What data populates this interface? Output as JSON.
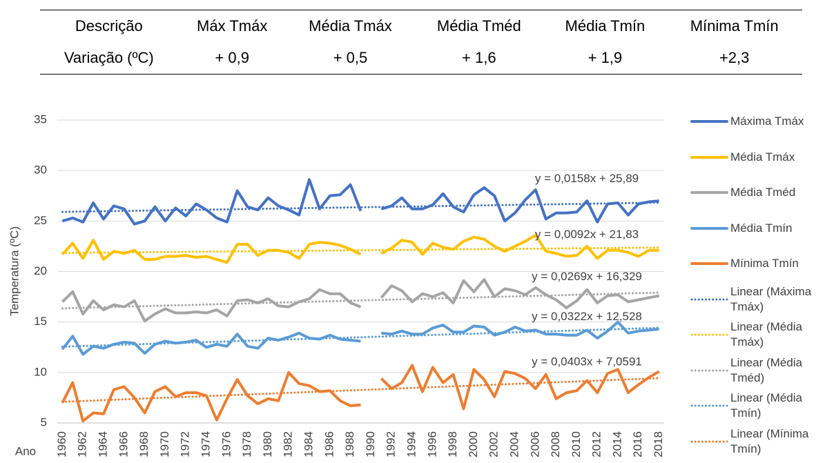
{
  "table": {
    "header": [
      "Descrição",
      "Máx Tmáx",
      "Média Tmáx",
      "Média Tméd",
      "Média Tmín",
      "Mínima Tmín"
    ],
    "rows": [
      [
        "Variação (ºC)",
        "+ 0,9",
        "+ 0,5",
        "+ 1,6",
        "+ 1,9",
        "+2,3"
      ]
    ]
  },
  "chart_data": {
    "type": "line",
    "y_label": "Temperatura (ºC)",
    "x_label": "Ano",
    "x": [
      1960,
      1961,
      1962,
      1963,
      1964,
      1965,
      1966,
      1967,
      1968,
      1969,
      1970,
      1971,
      1972,
      1973,
      1974,
      1975,
      1976,
      1977,
      1978,
      1979,
      1980,
      1981,
      1982,
      1983,
      1984,
      1985,
      1986,
      1987,
      1988,
      1989,
      1990,
      1991,
      1992,
      1993,
      1994,
      1995,
      1996,
      1997,
      1998,
      1999,
      2000,
      2001,
      2002,
      2003,
      2004,
      2005,
      2006,
      2007,
      2008,
      2009,
      2010,
      2011,
      2012,
      2013,
      2014,
      2015,
      2016,
      2017,
      2018
    ],
    "xlim": [
      1959.5,
      2018.5
    ],
    "xticks": [
      1960,
      1962,
      1964,
      1966,
      1968,
      1970,
      1972,
      1974,
      1976,
      1978,
      1980,
      1982,
      1984,
      1986,
      1988,
      1990,
      1992,
      1994,
      1996,
      1998,
      2000,
      2002,
      2004,
      2006,
      2008,
      2010,
      2012,
      2014,
      2016,
      2018
    ],
    "ylim": [
      5,
      35
    ],
    "yticks": [
      5,
      10,
      15,
      20,
      25,
      30,
      35
    ],
    "grid": true,
    "legend": "right",
    "series": [
      {
        "name": "Máxima Tmáx",
        "color": "#4472c4",
        "values": [
          25.0,
          25.3,
          24.9,
          26.8,
          25.2,
          26.5,
          26.2,
          24.7,
          25.0,
          26.4,
          25.0,
          26.3,
          25.5,
          26.7,
          26.1,
          25.3,
          24.9,
          28.0,
          26.4,
          26.1,
          27.3,
          26.5,
          26.1,
          25.6,
          29.1,
          26.2,
          27.5,
          27.6,
          28.6,
          26.0,
          null,
          26.2,
          26.5,
          27.3,
          26.2,
          26.2,
          26.6,
          27.7,
          26.4,
          25.9,
          27.6,
          28.3,
          27.5,
          25.0,
          25.8,
          27.1,
          28.1,
          25.2,
          25.8,
          25.8,
          25.9,
          27.0,
          24.9,
          26.7,
          26.8,
          25.6,
          26.7,
          26.9,
          27.0
        ],
        "trendline": {
          "name": "Linear (Máxima Tmáx)",
          "equation": "y = 0,0158x + 25,89",
          "slope": 0.0158,
          "intercept": 25.89
        }
      },
      {
        "name": "Média Tmáx",
        "color": "#ffc000",
        "values": [
          21.7,
          22.8,
          21.3,
          23.1,
          21.2,
          22.0,
          21.8,
          22.1,
          21.2,
          21.2,
          21.5,
          21.5,
          21.6,
          21.4,
          21.5,
          21.2,
          20.9,
          22.7,
          22.7,
          21.6,
          22.1,
          22.1,
          21.9,
          21.3,
          22.7,
          22.9,
          22.8,
          22.6,
          22.2,
          21.7,
          null,
          21.8,
          22.3,
          23.1,
          22.9,
          21.7,
          22.8,
          22.4,
          22.2,
          23.0,
          23.4,
          23.2,
          22.5,
          22.0,
          22.5,
          23.0,
          23.6,
          22.0,
          21.8,
          21.5,
          21.6,
          22.5,
          21.3,
          22.1,
          22.1,
          21.9,
          21.5,
          22.1,
          22.1
        ],
        "trendline": {
          "name": "Linear (Média Tmáx)",
          "equation": "y = 0,0092x + 21,83",
          "slope": 0.0092,
          "intercept": 21.83
        }
      },
      {
        "name": "Média Tméd",
        "color": "#a5a5a5",
        "values": [
          17.0,
          18.0,
          15.8,
          17.1,
          16.2,
          16.7,
          16.5,
          17.1,
          15.1,
          15.8,
          16.3,
          15.9,
          15.9,
          16.0,
          15.9,
          16.2,
          15.6,
          17.1,
          17.2,
          16.9,
          17.3,
          16.6,
          16.5,
          17.0,
          17.3,
          18.2,
          17.8,
          17.8,
          16.9,
          16.5,
          null,
          17.4,
          18.6,
          18.1,
          17.0,
          17.8,
          17.5,
          17.9,
          16.9,
          19.1,
          18.0,
          19.2,
          17.5,
          18.3,
          18.1,
          17.7,
          18.4,
          17.7,
          17.2,
          16.4,
          17.1,
          18.2,
          16.9,
          17.6,
          17.7,
          17.0,
          17.2,
          17.4,
          17.6
        ],
        "trendline": {
          "name": "Linear (Média Tméd)",
          "equation": "y = 0,0269x + 16,329",
          "slope": 0.0269,
          "intercept": 16.329
        }
      },
      {
        "name": "Média Tmín",
        "color": "#5b9bd5",
        "values": [
          12.3,
          13.6,
          11.8,
          12.6,
          12.4,
          12.8,
          13.0,
          12.9,
          11.9,
          12.8,
          13.1,
          12.9,
          13.0,
          13.2,
          12.5,
          12.8,
          12.6,
          13.8,
          12.6,
          12.4,
          13.4,
          13.2,
          13.5,
          13.9,
          13.4,
          13.3,
          13.7,
          13.3,
          13.2,
          13.1,
          null,
          13.9,
          13.8,
          14.1,
          13.8,
          13.8,
          14.4,
          14.7,
          14.0,
          14.0,
          14.6,
          14.5,
          13.7,
          14.0,
          14.5,
          14.1,
          14.2,
          13.8,
          13.8,
          13.7,
          13.7,
          14.2,
          13.4,
          14.1,
          15.0,
          13.9,
          14.1,
          14.2,
          14.3
        ],
        "trendline": {
          "name": "Linear (Média Tmín)",
          "equation": "y = 0,0322x + 12,528",
          "slope": 0.0322,
          "intercept": 12.528
        }
      },
      {
        "name": "Mínima Tmín",
        "color": "#ed7d31",
        "values": [
          7.0,
          9.0,
          5.2,
          6.0,
          5.9,
          8.3,
          8.6,
          7.5,
          6.0,
          8.1,
          8.6,
          7.6,
          8.0,
          8.0,
          7.7,
          5.3,
          7.4,
          9.3,
          7.7,
          6.9,
          7.4,
          7.2,
          10.0,
          8.9,
          8.7,
          8.1,
          8.2,
          7.2,
          6.7,
          6.8,
          null,
          9.4,
          8.4,
          9.0,
          10.7,
          8.1,
          10.5,
          9.0,
          9.8,
          6.4,
          10.3,
          9.3,
          7.6,
          10.1,
          9.9,
          9.4,
          8.4,
          9.8,
          7.4,
          8.0,
          8.2,
          9.2,
          8.0,
          9.9,
          10.3,
          8.0,
          8.8,
          9.5,
          10.1
        ],
        "trendline": {
          "name": "Linear (Mínima Tmín)",
          "equation": "y = 0,0403x + 7,0591",
          "slope": 0.0403,
          "intercept": 7.0591
        }
      }
    ]
  }
}
